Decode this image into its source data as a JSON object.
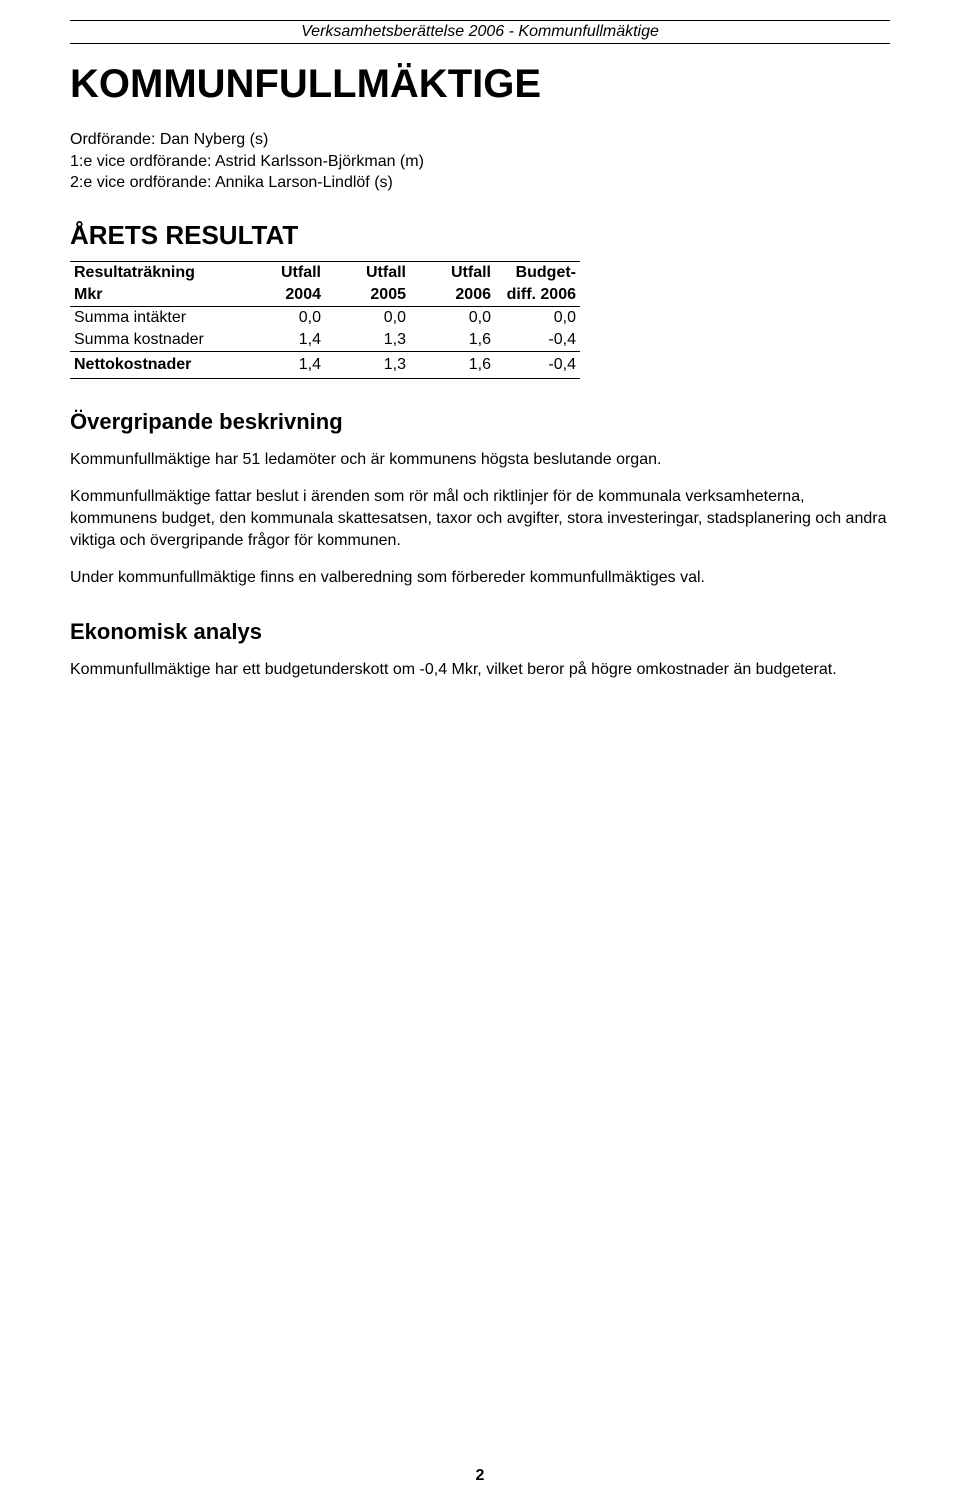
{
  "header": {
    "running_title": "Verksamhetsberättelse 2006 - Kommunfullmäktige"
  },
  "title": "KOMMUNFULLMÄKTIGE",
  "officials": {
    "chair": "Ordförande: Dan Nyberg (s)",
    "vice1": "1:e vice ordförande: Astrid Karlsson-Björkman (m)",
    "vice2": "2:e vice ordförande: Annika Larson-Lindlöf (s)"
  },
  "section1_title": "ÅRETS RESULTAT",
  "table": {
    "head1": [
      "Resultaträkning",
      "Utfall",
      "Utfall",
      "Utfall",
      "Budget-"
    ],
    "head2": [
      "Mkr",
      "2004",
      "2005",
      "2006",
      "diff. 2006"
    ],
    "rows": [
      {
        "label": "Summa intäkter",
        "v": [
          "0,0",
          "0,0",
          "0,0",
          "0,0"
        ]
      },
      {
        "label": "Summa kostnader",
        "v": [
          "1,4",
          "1,3",
          "1,6",
          "-0,4"
        ]
      }
    ],
    "netto": {
      "label": "Nettokostnader",
      "v": [
        "1,4",
        "1,3",
        "1,6",
        "-0,4"
      ]
    }
  },
  "section2_title": "Övergripande beskrivning",
  "para1": "Kommunfullmäktige har 51 ledamöter och är kommunens högsta beslutande organ.",
  "para2": "Kommunfullmäktige fattar beslut i ärenden som rör mål och riktlinjer för de kommunala verksamheterna, kommunens budget, den kommunala skattesatsen, taxor och avgifter, stora investeringar, stadsplanering och andra viktiga och övergripande frågor för kommunen.",
  "para3": "Under kommunfullmäktige finns en valberedning som förbereder kommunfullmäktiges val.",
  "section3_title": "Ekonomisk analys",
  "para4": "Kommunfullmäktige har ett budgetunderskott om -0,4 Mkr, vilket beror på högre omkostnader än budgeterat.",
  "page_number": "2"
}
